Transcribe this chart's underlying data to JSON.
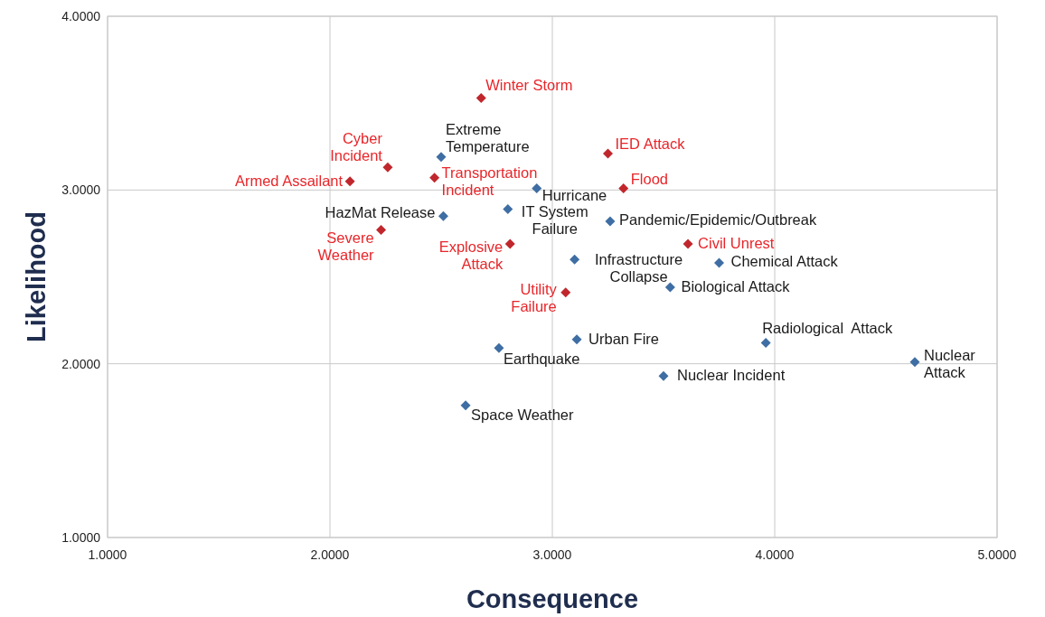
{
  "chart_data": {
    "type": "scatter",
    "xlabel": "Consequence",
    "ylabel": "Likelihood",
    "marker": "diamond",
    "grid": true,
    "xlim": [
      1,
      5
    ],
    "ylim": [
      1,
      4
    ],
    "xticks": [
      {
        "value": 1,
        "label": "1.0000"
      },
      {
        "value": 2,
        "label": "2.0000"
      },
      {
        "value": 3,
        "label": "3.0000"
      },
      {
        "value": 4,
        "label": "4.0000"
      },
      {
        "value": 5,
        "label": "5.0000"
      }
    ],
    "yticks": [
      {
        "value": 1,
        "label": "1.0000"
      },
      {
        "value": 2,
        "label": "2.0000"
      },
      {
        "value": 3,
        "label": "3.0000"
      },
      {
        "value": 4,
        "label": "4.0000"
      }
    ],
    "series": [
      {
        "color": "#c0272d",
        "x": [
          2.68,
          2.26,
          2.09,
          2.47,
          3.25,
          3.32,
          2.23,
          2.81,
          3.61,
          3.06
        ],
        "values": [
          3.53,
          3.13,
          3.05,
          3.07,
          3.21,
          3.01,
          2.77,
          2.69,
          2.69,
          2.41
        ]
      },
      {
        "color": "#3f6ea4",
        "x": [
          2.5,
          2.93,
          2.8,
          2.51,
          3.26,
          3.1,
          3.75,
          3.53,
          3.11,
          3.96,
          2.76,
          4.63,
          3.5,
          2.61
        ],
        "values": [
          3.19,
          3.01,
          2.89,
          2.85,
          2.82,
          2.6,
          2.58,
          2.44,
          2.14,
          2.12,
          2.09,
          2.01,
          1.93,
          1.76
        ]
      }
    ],
    "annotations": [
      {
        "text": "Winter Storm",
        "x": 2.68,
        "y": 3.53
      },
      {
        "text": "Cyber\nIncident",
        "x": 2.26,
        "y": 3.13
      },
      {
        "text": "Armed Assailant",
        "x": 2.09,
        "y": 3.05
      },
      {
        "text": "Transportation\nIncident",
        "x": 2.47,
        "y": 3.07
      },
      {
        "text": "IED Attack",
        "x": 3.25,
        "y": 3.21
      },
      {
        "text": "Flood",
        "x": 3.32,
        "y": 3.01
      },
      {
        "text": "Severe\nWeather",
        "x": 2.23,
        "y": 2.77
      },
      {
        "text": "Explosive\nAttack",
        "x": 2.81,
        "y": 2.69
      },
      {
        "text": "Civil Unrest",
        "x": 3.61,
        "y": 2.69
      },
      {
        "text": "Utility\nFailure",
        "x": 3.06,
        "y": 2.41
      },
      {
        "text": "Extreme\nTemperature",
        "x": 2.5,
        "y": 3.19
      },
      {
        "text": "Hurricane",
        "x": 2.93,
        "y": 3.01
      },
      {
        "text": "IT System\nFailure",
        "x": 2.8,
        "y": 2.89
      },
      {
        "text": "HazMat Release",
        "x": 2.51,
        "y": 2.85
      },
      {
        "text": "Pandemic/Epidemic/Outbreak",
        "x": 3.26,
        "y": 2.82
      },
      {
        "text": "Infrastructure\nCollapse",
        "x": 3.1,
        "y": 2.6
      },
      {
        "text": "Chemical Attack",
        "x": 3.75,
        "y": 2.58
      },
      {
        "text": "Biological Attack",
        "x": 3.53,
        "y": 2.44
      },
      {
        "text": "Urban Fire",
        "x": 3.11,
        "y": 2.14
      },
      {
        "text": "Radiological  Attack",
        "x": 3.96,
        "y": 2.12
      },
      {
        "text": "Earthquake",
        "x": 2.76,
        "y": 2.09
      },
      {
        "text": "Nuclear\nAttack",
        "x": 4.63,
        "y": 2.01
      },
      {
        "text": "Nuclear Incident",
        "x": 3.5,
        "y": 1.93
      },
      {
        "text": "Space Weather",
        "x": 2.61,
        "y": 1.76
      }
    ]
  }
}
